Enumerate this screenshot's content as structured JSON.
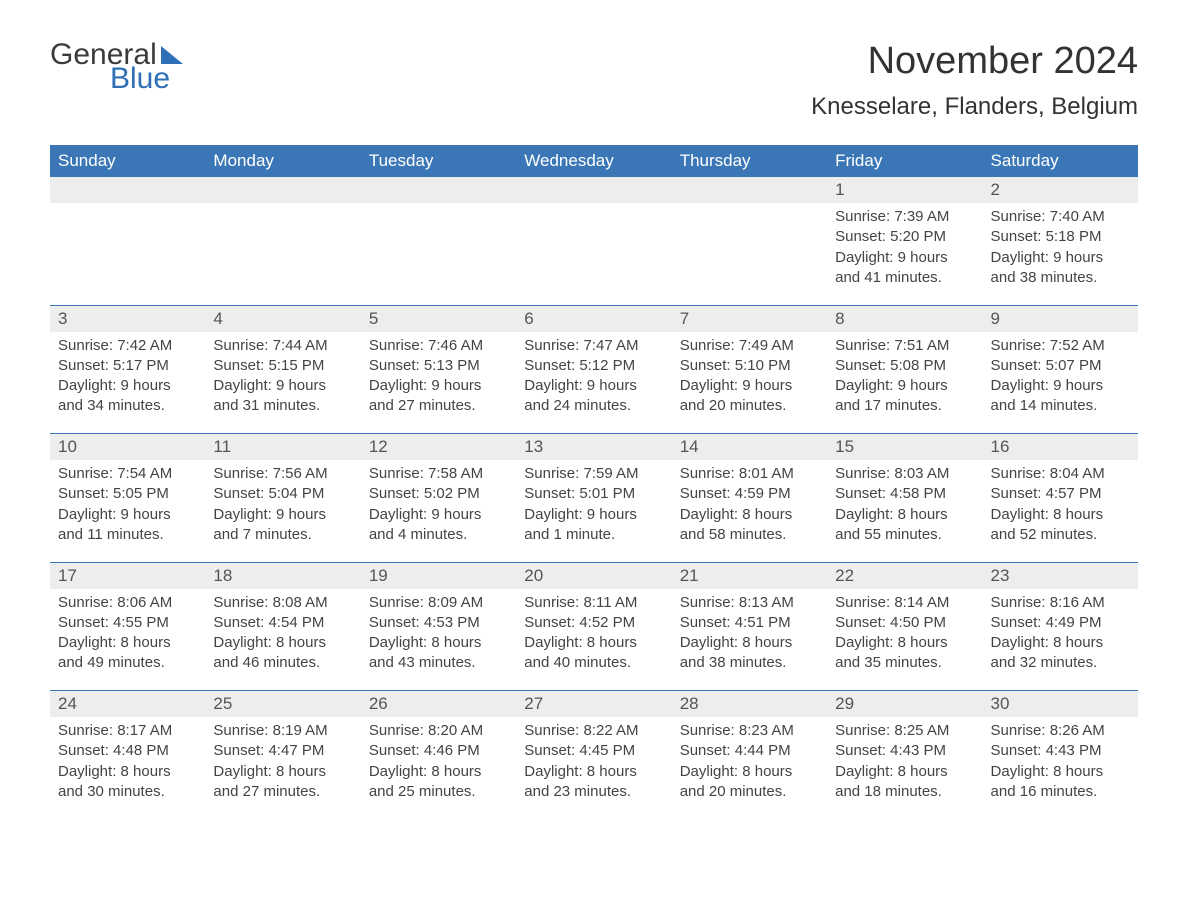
{
  "logo": {
    "general": "General",
    "blue": "Blue"
  },
  "title": "November 2024",
  "location": "Knesselare, Flanders, Belgium",
  "colors": {
    "header_bg": "#3b77b7",
    "header_text": "#ffffff",
    "daynum_bg": "#ededed",
    "rule": "#3b77b7",
    "logo_blue": "#2f6fb5",
    "text": "#333333"
  },
  "layout": {
    "columns": 7,
    "first_weekday": "Sunday",
    "month_start_column_index": 5
  },
  "weekdays": [
    "Sunday",
    "Monday",
    "Tuesday",
    "Wednesday",
    "Thursday",
    "Friday",
    "Saturday"
  ],
  "days": [
    {
      "n": 1,
      "sunrise": "7:39 AM",
      "sunset": "5:20 PM",
      "daylight": "9 hours and 41 minutes."
    },
    {
      "n": 2,
      "sunrise": "7:40 AM",
      "sunset": "5:18 PM",
      "daylight": "9 hours and 38 minutes."
    },
    {
      "n": 3,
      "sunrise": "7:42 AM",
      "sunset": "5:17 PM",
      "daylight": "9 hours and 34 minutes."
    },
    {
      "n": 4,
      "sunrise": "7:44 AM",
      "sunset": "5:15 PM",
      "daylight": "9 hours and 31 minutes."
    },
    {
      "n": 5,
      "sunrise": "7:46 AM",
      "sunset": "5:13 PM",
      "daylight": "9 hours and 27 minutes."
    },
    {
      "n": 6,
      "sunrise": "7:47 AM",
      "sunset": "5:12 PM",
      "daylight": "9 hours and 24 minutes."
    },
    {
      "n": 7,
      "sunrise": "7:49 AM",
      "sunset": "5:10 PM",
      "daylight": "9 hours and 20 minutes."
    },
    {
      "n": 8,
      "sunrise": "7:51 AM",
      "sunset": "5:08 PM",
      "daylight": "9 hours and 17 minutes."
    },
    {
      "n": 9,
      "sunrise": "7:52 AM",
      "sunset": "5:07 PM",
      "daylight": "9 hours and 14 minutes."
    },
    {
      "n": 10,
      "sunrise": "7:54 AM",
      "sunset": "5:05 PM",
      "daylight": "9 hours and 11 minutes."
    },
    {
      "n": 11,
      "sunrise": "7:56 AM",
      "sunset": "5:04 PM",
      "daylight": "9 hours and 7 minutes."
    },
    {
      "n": 12,
      "sunrise": "7:58 AM",
      "sunset": "5:02 PM",
      "daylight": "9 hours and 4 minutes."
    },
    {
      "n": 13,
      "sunrise": "7:59 AM",
      "sunset": "5:01 PM",
      "daylight": "9 hours and 1 minute."
    },
    {
      "n": 14,
      "sunrise": "8:01 AM",
      "sunset": "4:59 PM",
      "daylight": "8 hours and 58 minutes."
    },
    {
      "n": 15,
      "sunrise": "8:03 AM",
      "sunset": "4:58 PM",
      "daylight": "8 hours and 55 minutes."
    },
    {
      "n": 16,
      "sunrise": "8:04 AM",
      "sunset": "4:57 PM",
      "daylight": "8 hours and 52 minutes."
    },
    {
      "n": 17,
      "sunrise": "8:06 AM",
      "sunset": "4:55 PM",
      "daylight": "8 hours and 49 minutes."
    },
    {
      "n": 18,
      "sunrise": "8:08 AM",
      "sunset": "4:54 PM",
      "daylight": "8 hours and 46 minutes."
    },
    {
      "n": 19,
      "sunrise": "8:09 AM",
      "sunset": "4:53 PM",
      "daylight": "8 hours and 43 minutes."
    },
    {
      "n": 20,
      "sunrise": "8:11 AM",
      "sunset": "4:52 PM",
      "daylight": "8 hours and 40 minutes."
    },
    {
      "n": 21,
      "sunrise": "8:13 AM",
      "sunset": "4:51 PM",
      "daylight": "8 hours and 38 minutes."
    },
    {
      "n": 22,
      "sunrise": "8:14 AM",
      "sunset": "4:50 PM",
      "daylight": "8 hours and 35 minutes."
    },
    {
      "n": 23,
      "sunrise": "8:16 AM",
      "sunset": "4:49 PM",
      "daylight": "8 hours and 32 minutes."
    },
    {
      "n": 24,
      "sunrise": "8:17 AM",
      "sunset": "4:48 PM",
      "daylight": "8 hours and 30 minutes."
    },
    {
      "n": 25,
      "sunrise": "8:19 AM",
      "sunset": "4:47 PM",
      "daylight": "8 hours and 27 minutes."
    },
    {
      "n": 26,
      "sunrise": "8:20 AM",
      "sunset": "4:46 PM",
      "daylight": "8 hours and 25 minutes."
    },
    {
      "n": 27,
      "sunrise": "8:22 AM",
      "sunset": "4:45 PM",
      "daylight": "8 hours and 23 minutes."
    },
    {
      "n": 28,
      "sunrise": "8:23 AM",
      "sunset": "4:44 PM",
      "daylight": "8 hours and 20 minutes."
    },
    {
      "n": 29,
      "sunrise": "8:25 AM",
      "sunset": "4:43 PM",
      "daylight": "8 hours and 18 minutes."
    },
    {
      "n": 30,
      "sunrise": "8:26 AM",
      "sunset": "4:43 PM",
      "daylight": "8 hours and 16 minutes."
    }
  ],
  "labels": {
    "sunrise": "Sunrise:",
    "sunset": "Sunset:",
    "daylight": "Daylight:"
  }
}
